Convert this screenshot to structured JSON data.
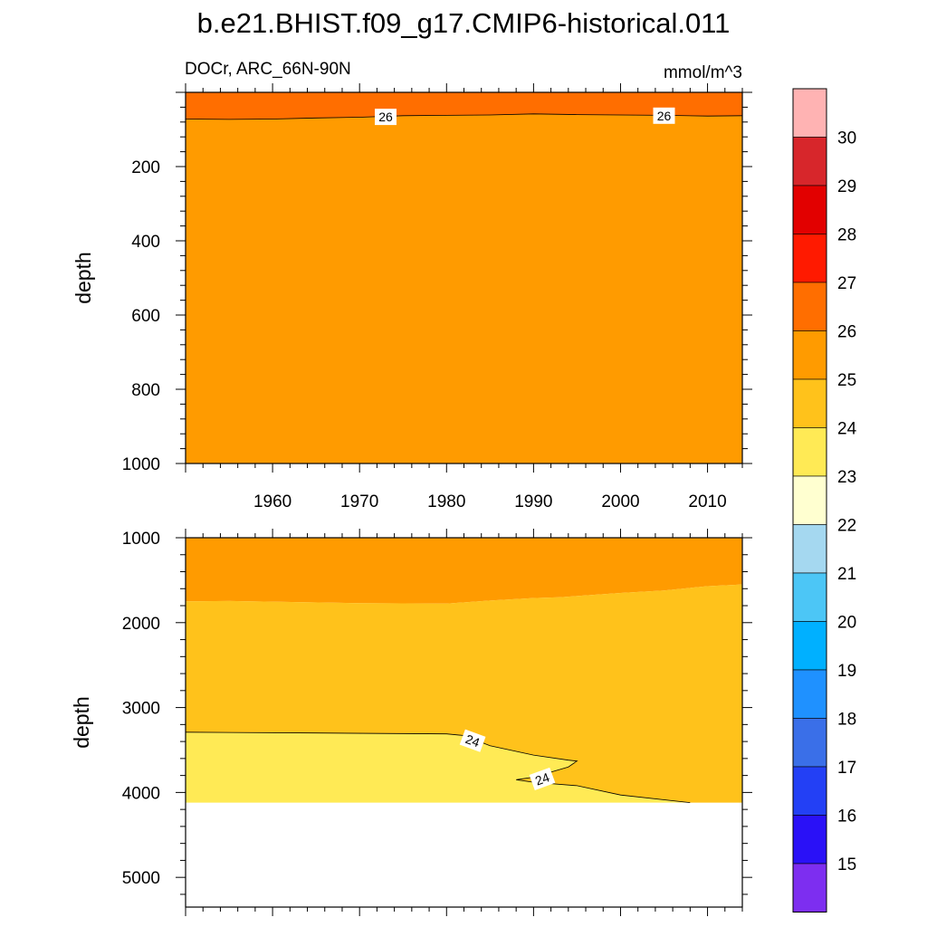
{
  "figure": {
    "title": "b.e21.BHIST.f09_g17.CMIP6-historical.011",
    "left_subtitle": "DOCr, ARC_66N-90N",
    "right_subtitle": "mmol/m^3"
  },
  "chart_data": [
    {
      "type": "heatmap",
      "panel": "upper",
      "xlabel": "",
      "ylabel": "depth",
      "xlim": [
        1950,
        2014
      ],
      "ylim": [
        1000,
        0
      ],
      "y_reversed": true,
      "x_ticks": [
        1960,
        1970,
        1980,
        1990,
        2000,
        2010
      ],
      "y_ticks": [
        200,
        400,
        600,
        800,
        1000
      ],
      "data_top_depth": 20,
      "contour_labels": [
        "26",
        "26"
      ],
      "regions": [
        {
          "level": "26-27",
          "color": "#ff6e00",
          "boundary_top": null,
          "boundary_bottom": [
            [
              1950,
              72
            ],
            [
              1955,
              73
            ],
            [
              1960,
              72
            ],
            [
              1965,
              69
            ],
            [
              1970,
              67
            ],
            [
              1975,
              63
            ],
            [
              1980,
              62
            ],
            [
              1985,
              61
            ],
            [
              1990,
              58
            ],
            [
              1995,
              60
            ],
            [
              2000,
              61
            ],
            [
              2005,
              62
            ],
            [
              2010,
              64
            ],
            [
              2014,
              63
            ]
          ]
        },
        {
          "level": "25-26",
          "color": "#ff9b00",
          "boundary_top": "prev",
          "boundary_bottom": null
        }
      ],
      "contour_line": [
        [
          1950,
          72
        ],
        [
          1955,
          73
        ],
        [
          1960,
          72
        ],
        [
          1965,
          69
        ],
        [
          1970,
          67
        ],
        [
          1975,
          63
        ],
        [
          1980,
          62
        ],
        [
          1985,
          61
        ],
        [
          1990,
          58
        ],
        [
          1995,
          60
        ],
        [
          2000,
          61
        ],
        [
          2005,
          62
        ],
        [
          2010,
          64
        ],
        [
          2014,
          63
        ]
      ]
    },
    {
      "type": "heatmap",
      "panel": "lower",
      "xlabel": "",
      "ylabel": "depth",
      "xlim": [
        1950,
        2014
      ],
      "ylim": [
        5350,
        1000
      ],
      "y_reversed": true,
      "x_ticks": [
        1960,
        1970,
        1980,
        1990,
        2000,
        2010
      ],
      "y_ticks": [
        1000,
        2000,
        3000,
        4000,
        5000
      ],
      "data_bottom_depth": 4120,
      "contour_labels": [
        "24",
        "24"
      ],
      "regions": [
        {
          "level": "25-26",
          "color": "#ff9b00",
          "boundary_top": null,
          "boundary_bottom": [
            [
              1950,
              1750
            ],
            [
              1955,
              1745
            ],
            [
              1970,
              1770
            ],
            [
              1980,
              1775
            ],
            [
              1985,
              1740
            ],
            [
              1990,
              1710
            ],
            [
              1993,
              1700
            ],
            [
              2000,
              1650
            ],
            [
              2005,
              1620
            ],
            [
              2010,
              1570
            ],
            [
              2014,
              1550
            ]
          ]
        },
        {
          "level": "24-25",
          "color": "#ffc21b",
          "boundary_top": "prev",
          "boundary_bottom": [
            [
              1950,
              3290
            ],
            [
              1965,
              3300
            ],
            [
              1980,
              3310
            ],
            [
              1982,
              3330
            ],
            [
              1985,
              3450
            ],
            [
              1990,
              3560
            ],
            [
              1994,
              3620
            ],
            [
              1995,
              3630
            ],
            [
              1994,
              3700
            ],
            [
              1990,
              3820
            ],
            [
              1988,
              3850
            ],
            [
              1990,
              3880
            ],
            [
              1995,
              3920
            ],
            [
              2000,
              4030
            ],
            [
              2008,
              4120
            ],
            [
              2014,
              4120
            ]
          ]
        },
        {
          "level": "23-24",
          "color": "#ffea55",
          "boundary_top": "prev",
          "boundary_bottom": 4120
        }
      ],
      "contour_line": [
        [
          1950,
          3290
        ],
        [
          1965,
          3300
        ],
        [
          1980,
          3310
        ],
        [
          1982,
          3330
        ],
        [
          1985,
          3450
        ],
        [
          1990,
          3560
        ],
        [
          1994,
          3620
        ],
        [
          1995,
          3630
        ],
        [
          1994,
          3700
        ],
        [
          1990,
          3820
        ],
        [
          1988,
          3850
        ],
        [
          1990,
          3880
        ],
        [
          1995,
          3920
        ],
        [
          2000,
          4030
        ],
        [
          2008,
          4120
        ]
      ]
    }
  ],
  "colorbar": {
    "labels": [
      "15",
      "16",
      "17",
      "18",
      "19",
      "20",
      "21",
      "22",
      "23",
      "24",
      "25",
      "26",
      "27",
      "28",
      "29",
      "30"
    ],
    "colors": [
      "#ffb3b3",
      "#d7262b",
      "#e20000",
      "#ff1a00",
      "#ff6e00",
      "#ff9b00",
      "#ffc21b",
      "#ffea55",
      "#ffffd0",
      "#a5d8f0",
      "#4cc6f6",
      "#00b0ff",
      "#1f91ff",
      "#3a6fe8",
      "#2340f5",
      "#2a11f7",
      "#7d2ef0"
    ]
  }
}
